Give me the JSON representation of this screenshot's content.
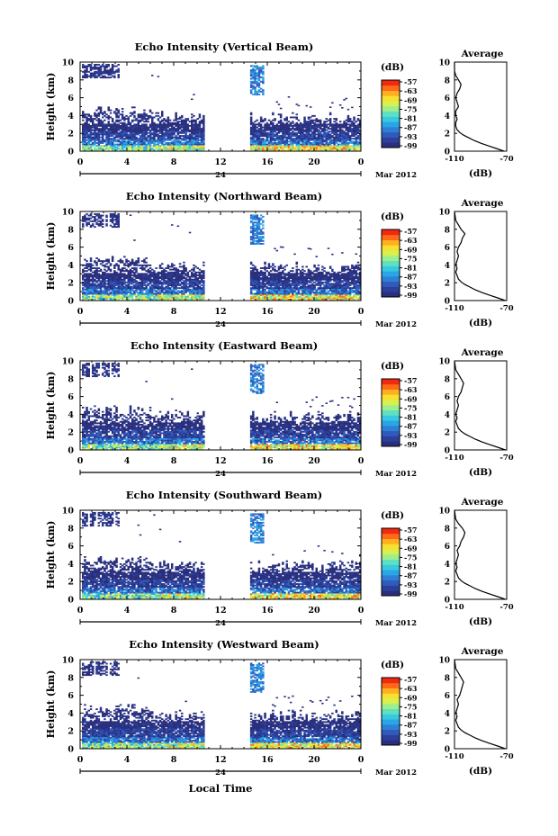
{
  "figure": {
    "x_axis_title": "Local Time",
    "date_label": "Mar 2012",
    "day_label": "24",
    "x_ticks": [
      "0",
      "4",
      "8",
      "12",
      "16",
      "20",
      "0"
    ],
    "y_ticks": [
      "0",
      "2",
      "4",
      "6",
      "8",
      "10"
    ],
    "y_axis_title": "Height (km)",
    "colorbar_unit": "(dB)",
    "colorbar_ticks": [
      "-57",
      "-63",
      "-69",
      "-75",
      "-81",
      "-87",
      "-93",
      "-99"
    ],
    "avg_title": "Average",
    "avg_x_ticks": [
      "-110",
      "-70"
    ],
    "avg_x_label": "(dB)",
    "avg_y_ticks": [
      "0",
      "2",
      "4",
      "6",
      "8",
      "10"
    ],
    "colors": {
      "palette": [
        "#2a2f7d",
        "#2c3f9a",
        "#2f5bbd",
        "#2f7fd6",
        "#2aa5e6",
        "#38c9e0",
        "#5fe0c0",
        "#9eee8e",
        "#d8f050",
        "#f8e030",
        "#ffb020",
        "#ff6a18",
        "#f02a10"
      ],
      "line": "#000000"
    }
  },
  "chart_data": [
    {
      "type": "heatmap",
      "title": "Echo Intensity (Vertical Beam)",
      "xlabel": "Local Time",
      "ylabel": "Height (km)",
      "xlim": [
        0,
        24
      ],
      "ylim": [
        0,
        10
      ],
      "zlim": [
        -99,
        -57
      ],
      "data_gap_hours": [
        10.5,
        14.5
      ],
      "colorbar_label": "(dB)"
    },
    {
      "type": "heatmap",
      "title": "Echo Intensity (Northward Beam)",
      "xlabel": "Local Time",
      "ylabel": "Height (km)",
      "xlim": [
        0,
        24
      ],
      "ylim": [
        0,
        10
      ],
      "zlim": [
        -99,
        -57
      ],
      "data_gap_hours": [
        10.5,
        14.5
      ],
      "colorbar_label": "(dB)"
    },
    {
      "type": "heatmap",
      "title": "Echo Intensity (Eastward Beam)",
      "xlabel": "Local Time",
      "ylabel": "Height (km)",
      "xlim": [
        0,
        24
      ],
      "ylim": [
        0,
        10
      ],
      "zlim": [
        -99,
        -57
      ],
      "data_gap_hours": [
        10.5,
        14.5
      ],
      "colorbar_label": "(dB)"
    },
    {
      "type": "heatmap",
      "title": "Echo Intensity (Southward Beam)",
      "xlabel": "Local Time",
      "ylabel": "Height (km)",
      "xlim": [
        0,
        24
      ],
      "ylim": [
        0,
        10
      ],
      "zlim": [
        -99,
        -57
      ],
      "data_gap_hours": [
        10.5,
        14.5
      ],
      "colorbar_label": "(dB)"
    },
    {
      "type": "heatmap",
      "title": "Echo Intensity (Westward Beam)",
      "xlabel": "Local Time",
      "ylabel": "Height (km)",
      "xlim": [
        0,
        24
      ],
      "ylim": [
        0,
        10
      ],
      "zlim": [
        -99,
        -57
      ],
      "data_gap_hours": [
        10.5,
        14.5
      ],
      "colorbar_label": "(dB)"
    },
    {
      "type": "line",
      "title": "Average",
      "xlabel": "(dB)",
      "xlim": [
        -110,
        -70
      ],
      "ylim": [
        0,
        10
      ],
      "x": [
        -72,
        -78,
        -84,
        -90,
        -95,
        -99,
        -103,
        -106,
        -108,
        -109,
        -109,
        -108,
        -109,
        -109,
        -107,
        -108,
        -109,
        -108,
        -106,
        -105,
        -107,
        -109,
        -110,
        -110
      ],
      "y": [
        0,
        0.3,
        0.6,
        0.9,
        1.2,
        1.5,
        1.8,
        2.1,
        2.4,
        2.8,
        3.2,
        3.6,
        4.0,
        4.5,
        5.0,
        5.5,
        6.0,
        6.5,
        7.0,
        7.5,
        8.0,
        8.5,
        9.0,
        10.0
      ]
    },
    {
      "type": "line",
      "title": "Average",
      "xlabel": "(dB)",
      "xlim": [
        -110,
        -70
      ],
      "ylim": [
        0,
        10
      ],
      "x": [
        -71,
        -77,
        -83,
        -89,
        -94,
        -98,
        -102,
        -105,
        -107,
        -108,
        -109,
        -108,
        -109,
        -108,
        -107,
        -108,
        -107,
        -105,
        -104,
        -102,
        -105,
        -107,
        -109,
        -110
      ],
      "y": [
        0,
        0.3,
        0.6,
        0.9,
        1.2,
        1.5,
        1.8,
        2.1,
        2.4,
        2.8,
        3.2,
        3.6,
        4.0,
        4.5,
        5.0,
        5.5,
        6.0,
        6.5,
        7.0,
        7.5,
        8.0,
        8.5,
        9.0,
        10.0
      ]
    },
    {
      "type": "line",
      "title": "Average",
      "xlabel": "(dB)",
      "xlim": [
        -110,
        -70
      ],
      "ylim": [
        0,
        10
      ],
      "x": [
        -71,
        -77,
        -83,
        -89,
        -94,
        -98,
        -102,
        -105,
        -107,
        -108,
        -109,
        -108,
        -109,
        -108,
        -107,
        -108,
        -107,
        -105,
        -104,
        -103,
        -105,
        -107,
        -109,
        -110
      ],
      "y": [
        0,
        0.3,
        0.6,
        0.9,
        1.2,
        1.5,
        1.8,
        2.1,
        2.4,
        2.8,
        3.2,
        3.6,
        4.0,
        4.5,
        5.0,
        5.5,
        6.0,
        6.5,
        7.0,
        7.5,
        8.0,
        8.5,
        9.0,
        10.0
      ]
    },
    {
      "type": "line",
      "title": "Average",
      "xlabel": "(dB)",
      "xlim": [
        -110,
        -70
      ],
      "ylim": [
        0,
        10
      ],
      "x": [
        -71,
        -77,
        -83,
        -89,
        -94,
        -98,
        -102,
        -105,
        -107,
        -108,
        -109,
        -108,
        -109,
        -108,
        -107,
        -108,
        -106,
        -105,
        -103,
        -102,
        -104,
        -107,
        -109,
        -110
      ],
      "y": [
        0,
        0.3,
        0.6,
        0.9,
        1.2,
        1.5,
        1.8,
        2.1,
        2.4,
        2.8,
        3.2,
        3.6,
        4.0,
        4.5,
        5.0,
        5.5,
        6.0,
        6.5,
        7.0,
        7.5,
        8.0,
        8.5,
        9.0,
        10.0
      ]
    },
    {
      "type": "line",
      "title": "Average",
      "xlabel": "(dB)",
      "xlim": [
        -110,
        -70
      ],
      "ylim": [
        0,
        10
      ],
      "x": [
        -71,
        -77,
        -83,
        -89,
        -94,
        -98,
        -102,
        -105,
        -107,
        -108,
        -109,
        -108,
        -109,
        -108,
        -107,
        -108,
        -106,
        -105,
        -104,
        -103,
        -105,
        -107,
        -109,
        -110
      ],
      "y": [
        0,
        0.3,
        0.6,
        0.9,
        1.2,
        1.5,
        1.8,
        2.1,
        2.4,
        2.8,
        3.2,
        3.6,
        4.0,
        4.5,
        5.0,
        5.5,
        6.0,
        6.5,
        7.0,
        7.5,
        8.0,
        8.5,
        9.0,
        10.0
      ]
    }
  ]
}
